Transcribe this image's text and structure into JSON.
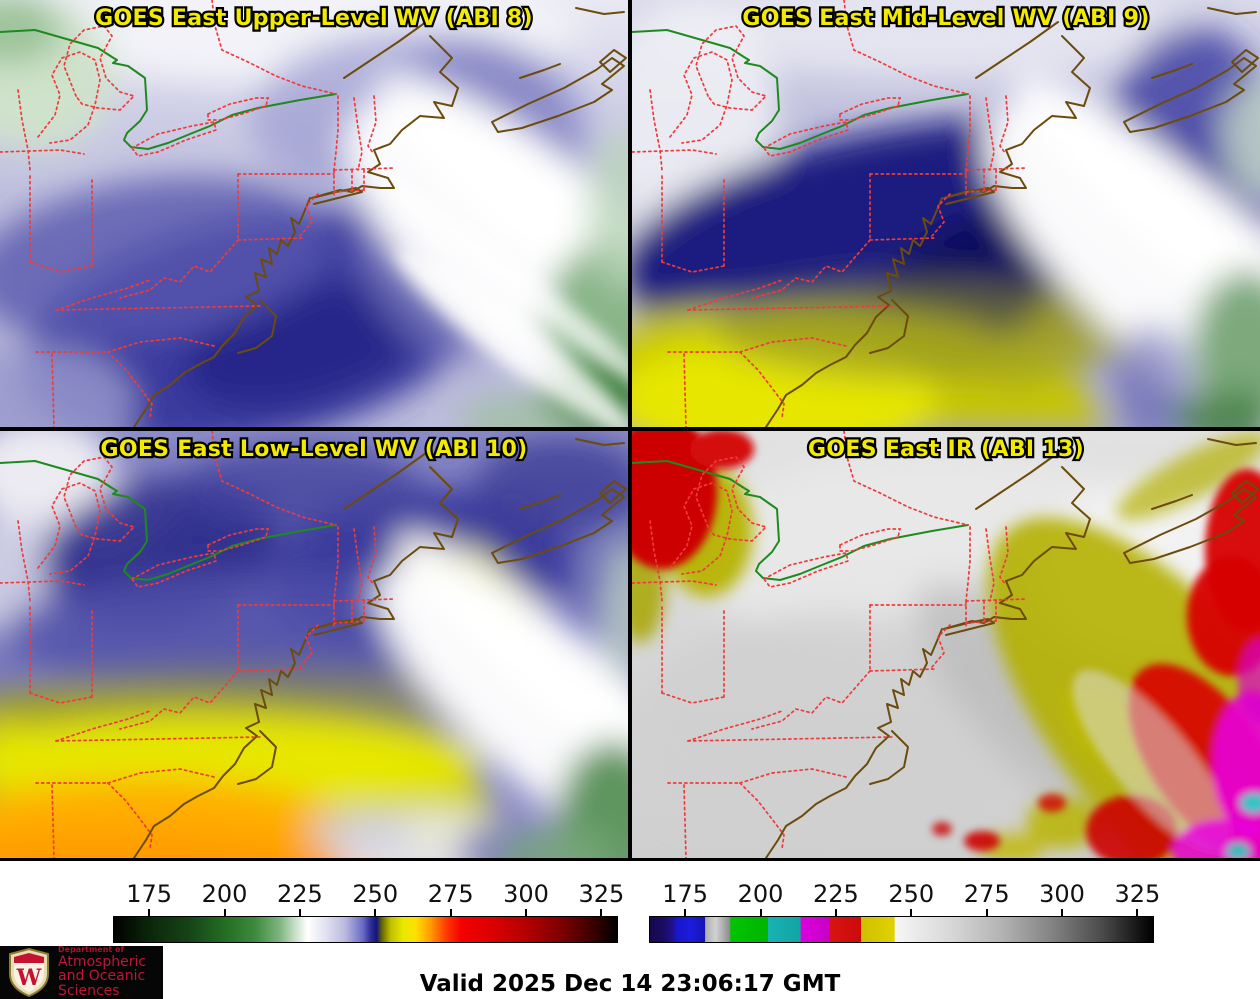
{
  "panels": [
    {
      "title": "GOES East Upper-Level WV (ABI 8)"
    },
    {
      "title": "GOES East Mid-Level WV (ABI 9)"
    },
    {
      "title": "GOES East Low-Level WV (ABI 10)"
    },
    {
      "title": "GOES East IR (ABI 13)"
    }
  ],
  "title_color": "#f2ea00",
  "map_overlay": {
    "state_border_color": "#ef3b3b",
    "coastline_color": "#6b4c0c",
    "international_border_color": "#1e8a1e"
  },
  "colorbars": {
    "wv": {
      "name": "water-vapor-brightness-temperature-scale",
      "units": "K",
      "range": [
        163,
        330.5
      ],
      "ticks": [
        175,
        200,
        225,
        250,
        275,
        300,
        325
      ],
      "stops": [
        [
          0,
          "#000000"
        ],
        [
          7,
          "#0b260b"
        ],
        [
          15,
          "#164416"
        ],
        [
          22,
          "#246d24"
        ],
        [
          28,
          "#3d8a3d"
        ],
        [
          33,
          "#7fb57f"
        ],
        [
          36,
          "#c8dfc8"
        ],
        [
          38.5,
          "#ffffff"
        ],
        [
          42,
          "#e2e2f1"
        ],
        [
          46,
          "#b9b9e0"
        ],
        [
          49.5,
          "#6a6ac6"
        ],
        [
          51,
          "#2e2e96"
        ],
        [
          52.2,
          "#14147a"
        ],
        [
          53.4,
          "#6e6e00"
        ],
        [
          55,
          "#c0c000"
        ],
        [
          57.5,
          "#e8e800"
        ],
        [
          60,
          "#ffdf00"
        ],
        [
          63,
          "#ff9900"
        ],
        [
          66,
          "#ff3c00"
        ],
        [
          69,
          "#f40000"
        ],
        [
          75,
          "#dc0000"
        ],
        [
          82,
          "#b40000"
        ],
        [
          89,
          "#7c0000"
        ],
        [
          95,
          "#3c0000"
        ],
        [
          100,
          "#000000"
        ]
      ]
    },
    "ir": {
      "name": "infrared-brightness-temperature-scale",
      "units": "K",
      "range": [
        163,
        330.5
      ],
      "ticks": [
        175,
        200,
        225,
        250,
        275,
        300,
        325
      ],
      "stops": [
        [
          0,
          "#16084a"
        ],
        [
          3,
          "#1c0c66"
        ],
        [
          4.9,
          "#22129c"
        ],
        [
          5,
          "#1616c8"
        ],
        [
          8,
          "#1c1cdc"
        ],
        [
          10.9,
          "#1414b4"
        ],
        [
          11,
          "#ababab"
        ],
        [
          13,
          "#d2d2d2"
        ],
        [
          15.9,
          "#8c8c8c"
        ],
        [
          16,
          "#00c400"
        ],
        [
          23.4,
          "#00b400"
        ],
        [
          23.5,
          "#17b2b2"
        ],
        [
          29.9,
          "#12a4a4"
        ],
        [
          30,
          "#dc00dc"
        ],
        [
          35.6,
          "#c800c8"
        ],
        [
          35.7,
          "#d81414"
        ],
        [
          41.9,
          "#cc0a0a"
        ],
        [
          42,
          "#cfc000"
        ],
        [
          48.6,
          "#e0d200"
        ],
        [
          48.7,
          "#f6f6f6"
        ],
        [
          60,
          "#d7d7d7"
        ],
        [
          70,
          "#b3b3b3"
        ],
        [
          80,
          "#828282"
        ],
        [
          90,
          "#4a4a4a"
        ],
        [
          100,
          "#000000"
        ]
      ]
    }
  },
  "footer": {
    "valid_text": "Valid 2025 Dec 14 23:06:17 GMT"
  },
  "logo": {
    "dept_line": "Department of",
    "name_line1": "Atmospheric",
    "name_line2": "and Oceanic Sciences",
    "monogram": "W",
    "text_color": "#bd1637"
  }
}
